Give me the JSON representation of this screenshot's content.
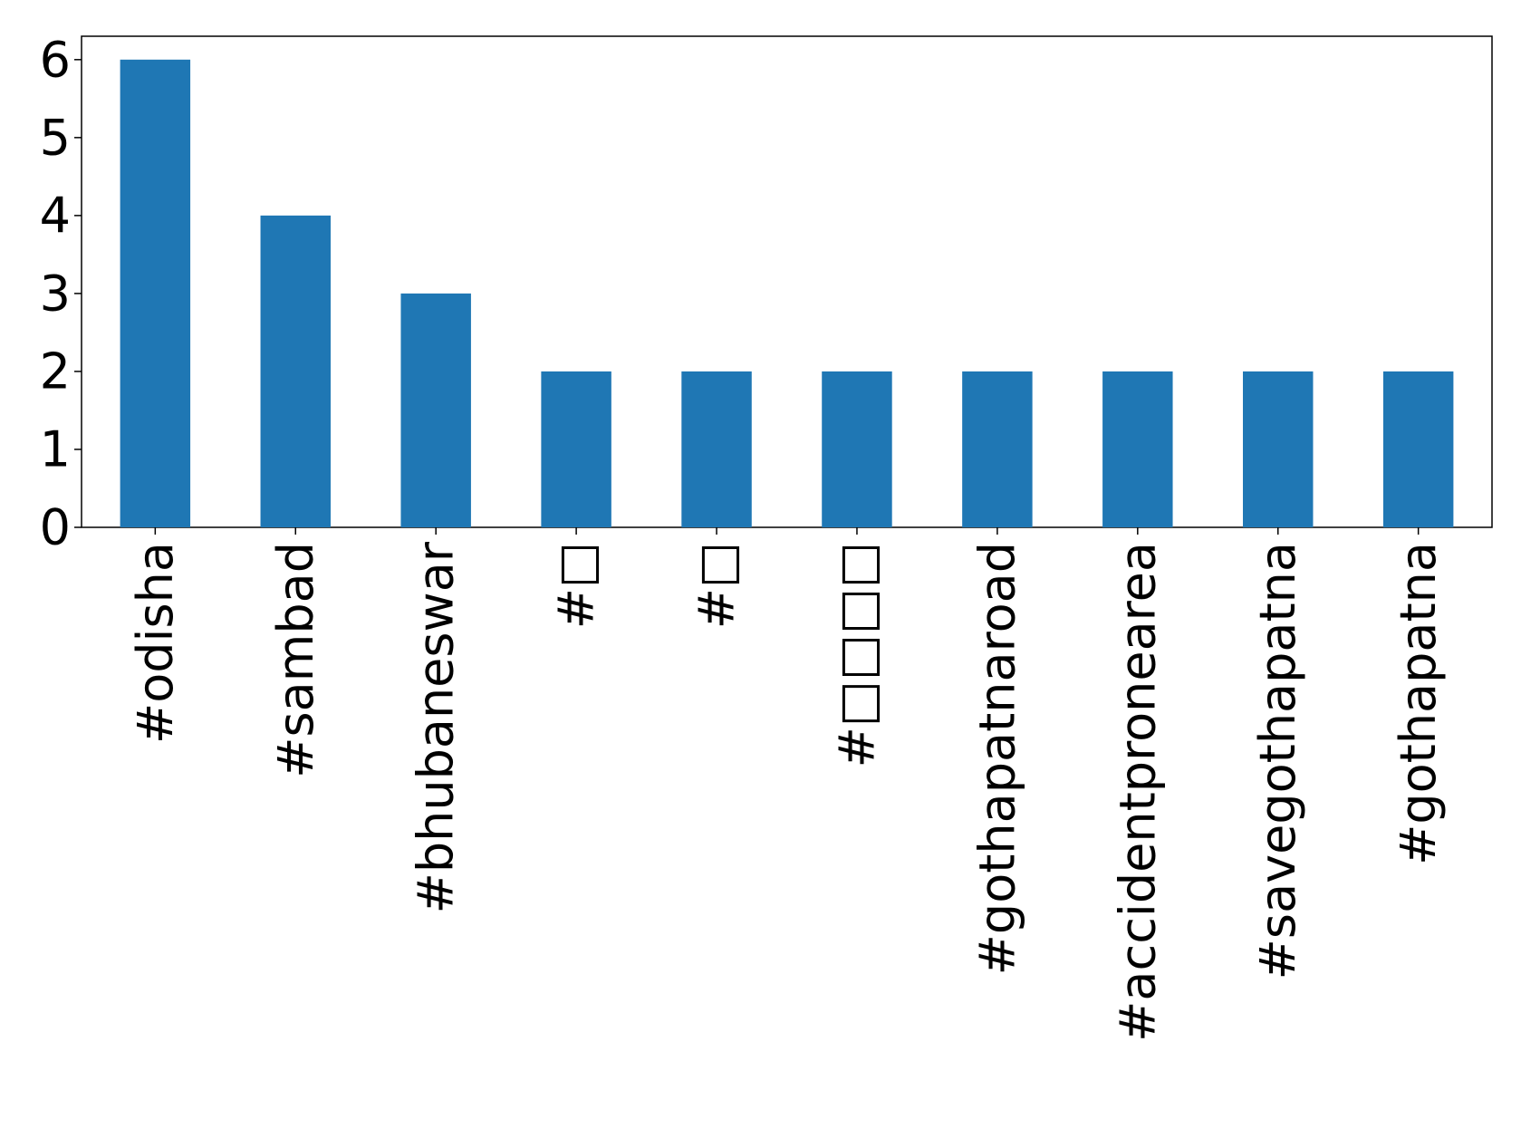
{
  "chart_data": {
    "type": "bar",
    "categories": [
      "#odisha",
      "#sambad",
      "#bhubaneswar",
      "#□",
      "#□",
      "#□□□□",
      "#gothapatnaroad",
      "#accidentpronearea",
      "#savegothapatna",
      "#gothapatna"
    ],
    "values": [
      6,
      4,
      3,
      2,
      2,
      2,
      2,
      2,
      2,
      2
    ],
    "yticks": [
      "0",
      "1",
      "2",
      "3",
      "4",
      "5",
      "6"
    ],
    "ylim": [
      0,
      6.3
    ],
    "bar_color": "#1f77b4",
    "grid": false,
    "legend": "none",
    "title": "",
    "xlabel": "",
    "ylabel": ""
  }
}
